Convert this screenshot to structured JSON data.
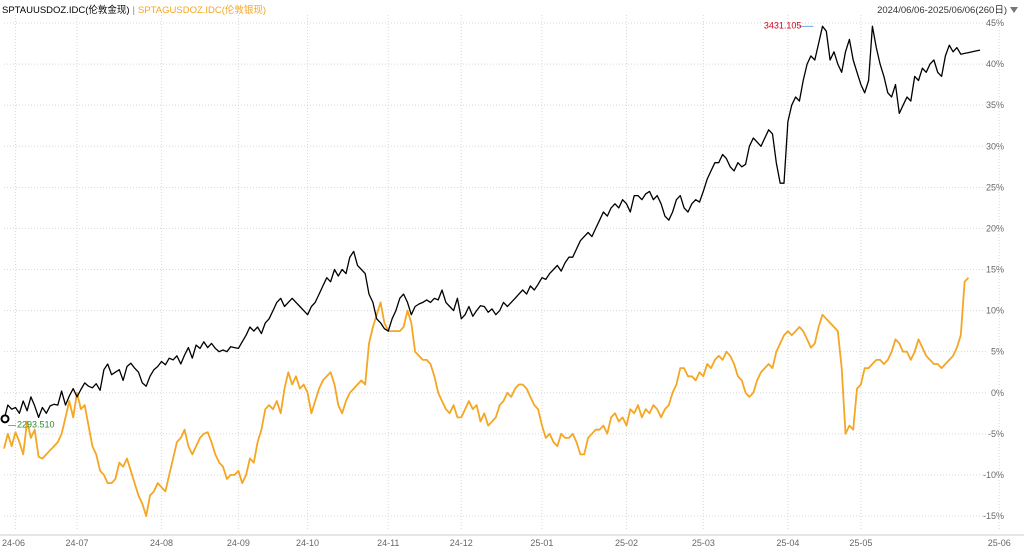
{
  "header": {
    "series1_name": "SPTAUUSDOZ.IDC(伦敦金现)",
    "separator": "|",
    "series2_name": "SPTAGUSDOZ.IDC(伦敦银现)",
    "range_label": "2024/06/06-2025/06/06(260日)"
  },
  "colors": {
    "series1": "#000000",
    "series2": "#f5a623",
    "grid": "#d8d8d8",
    "axis_text": "#666666",
    "max_label": "#d0021b",
    "min_label": "#2e8b2e"
  },
  "chart_data": {
    "type": "line",
    "title": "",
    "xlabel": "",
    "ylabel": "",
    "ylim": [
      -15,
      45
    ],
    "y_ticks": [
      45,
      40,
      35,
      30,
      25,
      20,
      15,
      10,
      5,
      0,
      -5,
      -10,
      -15
    ],
    "y_tick_labels": [
      "45%",
      "40%",
      "35%",
      "30%",
      "25%",
      "20%",
      "15%",
      "10%",
      "5%",
      "0%",
      "-5%",
      "-10%",
      "-15%"
    ],
    "x_ticks": [
      "24-06",
      "24-07",
      "24-08",
      "24-09",
      "24-10",
      "24-11",
      "24-12",
      "25-01",
      "25-02",
      "25-03",
      "25-04",
      "25-05",
      "25-06"
    ],
    "x_tick_positions": [
      3,
      19,
      41,
      61,
      79,
      100,
      119,
      140,
      162,
      182,
      204,
      223,
      259
    ],
    "grid": true,
    "annotations": [
      {
        "text": "3431.105",
        "series": "SPTAUUSDOZ.IDC(伦敦金现)",
        "x": 207,
        "y": 44.6
      },
      {
        "text": "2293.510",
        "series": "SPTAUUSDOZ.IDC(伦敦金现)",
        "x": 0,
        "y": -3.5
      }
    ],
    "series": [
      {
        "name": "SPTAUUSDOZ.IDC(伦敦金现)",
        "color": "#000000",
        "values": [
          -3.3,
          -1.5,
          -2.0,
          -1.8,
          -2.5,
          -1.0,
          -2.2,
          -0.5,
          -1.6,
          -3.0,
          -1.8,
          -2.5,
          -1.6,
          -1.4,
          -1.5,
          0.2,
          -1.5,
          -0.4,
          0.5,
          -0.5,
          0.4,
          1.2,
          0.8,
          0.6,
          1.1,
          0.3,
          2.8,
          3.5,
          2.2,
          2.5,
          2.8,
          1.5,
          3.2,
          3.6,
          3.0,
          2.5,
          1.2,
          0.8,
          2.0,
          2.8,
          3.2,
          3.8,
          3.4,
          4.2,
          4.0,
          4.5,
          3.5,
          4.6,
          5.5,
          4.2,
          5.8,
          5.4,
          6.2,
          5.5,
          6.0,
          5.4,
          5.0,
          5.2,
          5.0,
          5.6,
          5.5,
          5.4,
          6.2,
          7.0,
          8.0,
          7.5,
          8.0,
          7.2,
          8.5,
          9.0,
          10.0,
          11.0,
          11.5,
          10.5,
          11.0,
          11.5,
          11.0,
          10.5,
          10.0,
          9.5,
          10.5,
          11.0,
          12.0,
          13.0,
          14.0,
          13.5,
          15.0,
          14.2,
          15.0,
          14.5,
          16.5,
          17.2,
          15.5,
          15.0,
          14.5,
          12.0,
          11.0,
          9.0,
          8.5,
          7.8,
          7.5,
          9.0,
          10.0,
          11.5,
          12.0,
          11.0,
          9.5,
          10.5,
          10.8,
          11.0,
          11.3,
          11.0,
          11.5,
          11.3,
          12.5,
          11.0,
          10.5,
          10.0,
          11.5,
          9.0,
          9.5,
          10.5,
          9.3,
          10.0,
          10.6,
          10.5,
          9.8,
          10.2,
          9.5,
          10.0,
          11.0,
          10.5,
          11.0,
          11.5,
          12.0,
          12.5,
          12.0,
          13.0,
          12.5,
          13.2,
          14.0,
          13.8,
          14.5,
          15.0,
          15.5,
          14.8,
          15.8,
          16.5,
          16.5,
          17.5,
          18.5,
          19.0,
          19.5,
          19.0,
          20.0,
          21.0,
          22.0,
          21.5,
          22.5,
          23.0,
          22.5,
          23.5,
          23.0,
          22.0,
          24.0,
          24.0,
          23.5,
          24.2,
          24.5,
          23.5,
          24.0,
          23.0,
          21.5,
          21.0,
          22.0,
          23.5,
          24.0,
          22.5,
          22.0,
          23.0,
          23.5,
          23.2,
          24.5,
          26.0,
          27.0,
          28.0,
          28.0,
          29.0,
          28.5,
          27.5,
          27.0,
          28.0,
          27.5,
          27.8,
          30.0,
          31.0,
          30.5,
          30.0,
          31.0,
          32.0,
          31.5,
          28.0,
          25.5,
          25.5,
          33.0,
          35.0,
          36.0,
          35.5,
          38.0,
          40.0,
          41.0,
          40.5,
          42.5,
          44.6,
          44.0,
          40.5,
          41.5,
          40.0,
          39.0,
          41.5,
          43.0,
          40.5,
          39.0,
          37.5,
          36.5,
          38.0,
          44.6,
          42.0,
          40.0,
          38.5,
          36.5,
          36.0,
          37.5,
          34.0,
          35.0,
          36.0,
          35.5,
          38.5,
          38.0,
          39.5,
          39.0,
          40.0,
          40.5,
          39.0,
          38.5,
          41.0,
          42.3,
          41.5,
          42.0,
          41.2,
          41.3,
          41.4,
          41.5,
          41.6,
          41.7
        ]
      },
      {
        "name": "SPTAGUSDOZ.IDC(伦敦银现)",
        "color": "#f5a623",
        "values": [
          -6.8,
          -5.0,
          -6.5,
          -4.8,
          -6.0,
          -7.5,
          -3.5,
          -5.5,
          -4.5,
          -7.8,
          -8.0,
          -7.5,
          -7.0,
          -6.5,
          -6.0,
          -5.0,
          -3.0,
          -1.0,
          -3.0,
          0.0,
          -2.0,
          -1.5,
          -4.0,
          -6.5,
          -7.5,
          -9.5,
          -10.0,
          -11.0,
          -11.0,
          -10.5,
          -8.5,
          -9.0,
          -8.0,
          -9.5,
          -11.0,
          -12.5,
          -13.5,
          -15.0,
          -12.5,
          -12.0,
          -11.0,
          -11.5,
          -12.0,
          -10.0,
          -8.0,
          -6.0,
          -5.5,
          -4.5,
          -6.5,
          -7.5,
          -6.5,
          -5.5,
          -5.0,
          -4.8,
          -6.0,
          -7.5,
          -8.5,
          -9.0,
          -10.5,
          -10.0,
          -10.0,
          -9.5,
          -11.0,
          -10.0,
          -8.0,
          -8.5,
          -6.0,
          -4.5,
          -2.0,
          -1.5,
          -2.0,
          -1.0,
          -2.5,
          0.5,
          2.5,
          1.0,
          2.0,
          0.5,
          1.0,
          0.0,
          -2.5,
          -1.0,
          0.5,
          1.5,
          2.0,
          2.5,
          1.0,
          -1.5,
          -2.5,
          -1.0,
          0.0,
          0.5,
          1.0,
          1.5,
          1.0,
          6.0,
          8.0,
          9.5,
          11.0,
          8.5,
          7.5,
          7.5,
          7.5,
          7.5,
          8.0,
          10.0,
          8.5,
          5.0,
          4.5,
          4.0,
          4.0,
          3.5,
          2.0,
          0.0,
          -1.0,
          -2.0,
          -2.5,
          -1.5,
          -3.0,
          -3.0,
          -2.0,
          -1.0,
          -2.0,
          -1.5,
          -3.5,
          -2.5,
          -4.0,
          -3.5,
          -3.0,
          -1.5,
          -1.0,
          0.0,
          -0.5,
          0.5,
          1.0,
          1.0,
          0.5,
          -0.5,
          -1.5,
          -2.0,
          -4.0,
          -5.5,
          -5.0,
          -6.0,
          -6.5,
          -5.0,
          -5.5,
          -5.5,
          -5.0,
          -6.0,
          -7.5,
          -7.5,
          -5.5,
          -5.0,
          -4.5,
          -4.5,
          -4.0,
          -5.0,
          -3.0,
          -2.5,
          -3.5,
          -3.0,
          -4.0,
          -2.0,
          -2.5,
          -1.5,
          -3.0,
          -2.0,
          -2.5,
          -1.5,
          -2.0,
          -3.0,
          -2.0,
          -1.5,
          0.0,
          1.0,
          3.0,
          3.0,
          2.0,
          2.0,
          1.5,
          2.5,
          2.0,
          3.5,
          3.0,
          4.0,
          4.5,
          4.0,
          5.0,
          4.5,
          3.5,
          2.0,
          1.5,
          0.0,
          -0.5,
          0.0,
          1.5,
          2.5,
          3.0,
          3.5,
          3.0,
          5.0,
          6.0,
          7.0,
          7.5,
          7.0,
          7.5,
          8.0,
          7.5,
          6.5,
          5.5,
          6.0,
          8.0,
          9.5,
          9.0,
          8.5,
          8.0,
          7.5,
          3.0,
          -5.0,
          -4.0,
          -4.5,
          0.5,
          1.0,
          3.0,
          3.0,
          3.5,
          4.0,
          4.0,
          3.5,
          4.0,
          5.0,
          6.5,
          6.0,
          5.0,
          5.0,
          4.0,
          5.0,
          6.5,
          5.5,
          4.5,
          4.0,
          3.5,
          3.5,
          3.0,
          3.5,
          4.0,
          4.5,
          5.5,
          7.0,
          13.5,
          14.0
        ]
      }
    ]
  }
}
